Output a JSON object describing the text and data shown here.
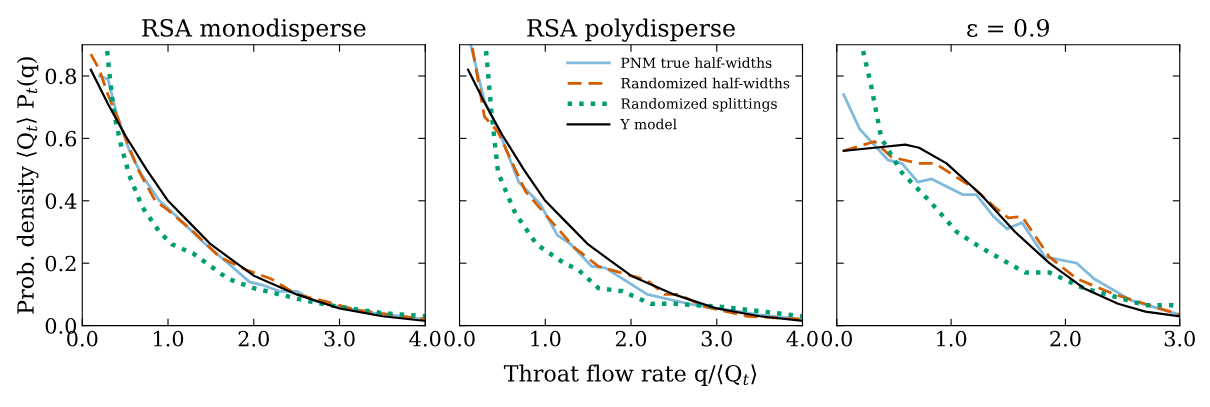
{
  "chart_data": [
    {
      "type": "line",
      "title": "RSA monodisperse",
      "ylabel": "Prob. density ⟨Q$_{t}$⟩ P$_{t}$(q)",
      "xlim": [
        0,
        4
      ],
      "ylim": [
        0,
        0.9
      ],
      "xticks": [
        {
          "value": 0,
          "label": "0.0"
        },
        {
          "value": 1,
          "label": "1.0"
        },
        {
          "value": 2,
          "label": "2.0"
        },
        {
          "value": 3,
          "label": "3.0"
        },
        {
          "value": 4,
          "label": "4.0"
        }
      ],
      "yticks": [
        {
          "value": 0,
          "label": "0.0"
        },
        {
          "value": 0.2,
          "label": "0.2"
        },
        {
          "value": 0.4,
          "label": "0.4"
        },
        {
          "value": 0.6,
          "label": "0.6"
        },
        {
          "value": 0.8,
          "label": "0.8"
        }
      ],
      "series": [
        {
          "color": "#7fb9dc",
          "line_style": "solid",
          "x": [
            0.2,
            0.3,
            0.4,
            0.55,
            0.7,
            0.9,
            1.1,
            1.4,
            1.7,
            1.95,
            2.1,
            2.3,
            2.5,
            2.7,
            3.0,
            3.4,
            4.0
          ],
          "values": [
            0.8,
            0.79,
            0.68,
            0.56,
            0.48,
            0.4,
            0.35,
            0.27,
            0.2,
            0.14,
            0.13,
            0.11,
            0.11,
            0.08,
            0.06,
            0.04,
            0.02
          ]
        },
        {
          "color": "#d55e00",
          "line_style": "dashed",
          "x": [
            0.1,
            0.2,
            0.3,
            0.45,
            0.65,
            0.85,
            1.0,
            1.3,
            1.6,
            1.9,
            2.2,
            2.5,
            2.8,
            3.2,
            3.6,
            4.0
          ],
          "values": [
            0.87,
            0.82,
            0.74,
            0.64,
            0.5,
            0.4,
            0.37,
            0.3,
            0.22,
            0.18,
            0.15,
            0.1,
            0.08,
            0.05,
            0.035,
            0.02
          ]
        },
        {
          "color": "#009e73",
          "line_style": "dotted",
          "x": [
            0.29,
            0.32,
            0.37,
            0.45,
            0.55,
            0.7,
            0.9,
            1.05,
            1.3,
            1.5,
            1.7,
            2.0,
            2.3,
            2.6,
            3.0,
            3.5,
            4.0
          ],
          "values": [
            0.88,
            0.8,
            0.68,
            0.58,
            0.48,
            0.38,
            0.3,
            0.26,
            0.23,
            0.19,
            0.15,
            0.12,
            0.1,
            0.08,
            0.06,
            0.04,
            0.03
          ]
        },
        {
          "color": "#000000",
          "line_style": "solid",
          "x": [
            0.1,
            0.3,
            0.5,
            0.75,
            1.0,
            1.25,
            1.5,
            1.75,
            2.0,
            2.5,
            3.0,
            3.5,
            4.0
          ],
          "values": [
            0.82,
            0.71,
            0.61,
            0.5,
            0.4,
            0.33,
            0.26,
            0.21,
            0.16,
            0.1,
            0.055,
            0.03,
            0.015
          ]
        }
      ],
      "tick_labels": true
    },
    {
      "type": "line",
      "title": "RSA polydisperse",
      "xlabel": "Throat flow rate q/⟨Q$_{t}$⟩",
      "xlim": [
        0,
        4
      ],
      "ylim": [
        0,
        0.9
      ],
      "xticks": [
        {
          "value": 0,
          "label": "0.0"
        },
        {
          "value": 1,
          "label": "1.0"
        },
        {
          "value": 2,
          "label": "2.0"
        },
        {
          "value": 3,
          "label": "3.0"
        },
        {
          "value": 4,
          "label": "4.0"
        }
      ],
      "yticks": [
        {
          "value": 0,
          "label": null
        },
        {
          "value": 0.2,
          "label": null
        },
        {
          "value": 0.4,
          "label": null
        },
        {
          "value": 0.6,
          "label": null
        },
        {
          "value": 0.8,
          "label": null
        }
      ],
      "legend": "top right",
      "tick_labels": "x",
      "series": [
        {
          "name": "PNM true half-widths",
          "color": "#7fb9dc",
          "line_style": "solid",
          "x": [
            0.13,
            0.29,
            0.45,
            0.69,
            0.94,
            1.14,
            1.3,
            1.54,
            1.7,
            2.19,
            2.67,
            3.48,
            4.0
          ],
          "values": [
            0.9,
            0.72,
            0.63,
            0.46,
            0.39,
            0.29,
            0.26,
            0.19,
            0.185,
            0.1,
            0.07,
            0.035,
            0.02
          ]
        },
        {
          "name": "Randomized half-widths",
          "color": "#d55e00",
          "line_style": "dashed",
          "x": [
            0.15,
            0.29,
            0.45,
            0.77,
            1.02,
            1.34,
            1.62,
            2.19,
            2.39,
            2.55,
            2.87,
            3.35,
            4.0
          ],
          "values": [
            0.89,
            0.67,
            0.62,
            0.43,
            0.35,
            0.25,
            0.19,
            0.145,
            0.1,
            0.1,
            0.06,
            0.03,
            0.02
          ]
        },
        {
          "name": "Randomized splittings",
          "color": "#009e73",
          "line_style": "dotted",
          "x": [
            0.31,
            0.37,
            0.45,
            0.65,
            0.9,
            1.22,
            1.38,
            1.62,
            1.9,
            2.23,
            2.51,
            3.07,
            4.0
          ],
          "values": [
            0.88,
            0.69,
            0.49,
            0.36,
            0.26,
            0.2,
            0.18,
            0.12,
            0.11,
            0.07,
            0.07,
            0.06,
            0.03
          ]
        },
        {
          "name": "Y model",
          "color": "#000000",
          "line_style": "solid",
          "x": [
            0.1,
            0.3,
            0.5,
            0.75,
            1.0,
            1.25,
            1.5,
            1.75,
            2.0,
            2.5,
            3.0,
            3.5,
            4.0
          ],
          "values": [
            0.82,
            0.71,
            0.61,
            0.5,
            0.4,
            0.33,
            0.26,
            0.21,
            0.16,
            0.1,
            0.055,
            0.03,
            0.015
          ]
        }
      ]
    },
    {
      "type": "line",
      "title": "ε = 0.9",
      "xlim": [
        0,
        3
      ],
      "ylim": [
        0,
        0.9
      ],
      "xticks": [
        {
          "value": 0,
          "label": "0.0"
        },
        {
          "value": 1,
          "label": "1.0"
        },
        {
          "value": 2,
          "label": "2.0"
        },
        {
          "value": 3,
          "label": "3.0"
        }
      ],
      "yticks": [
        {
          "value": 0,
          "label": null
        },
        {
          "value": 0.2,
          "label": null
        },
        {
          "value": 0.4,
          "label": null
        },
        {
          "value": 0.6,
          "label": null
        },
        {
          "value": 0.8,
          "label": null
        }
      ],
      "tick_labels": "x",
      "series": [
        {
          "color": "#7fb9dc",
          "line_style": "solid",
          "x": [
            0.06,
            0.2,
            0.45,
            0.57,
            0.71,
            0.83,
            1.1,
            1.22,
            1.37,
            1.49,
            1.62,
            1.82,
            2.1,
            2.25,
            2.58,
            3.0
          ],
          "values": [
            0.74,
            0.63,
            0.53,
            0.52,
            0.46,
            0.47,
            0.42,
            0.42,
            0.35,
            0.31,
            0.33,
            0.22,
            0.2,
            0.15,
            0.08,
            0.035
          ]
        },
        {
          "color": "#d55e00",
          "line_style": "dashed",
          "x": [
            0.06,
            0.33,
            0.48,
            0.71,
            0.86,
            1.2,
            1.38,
            1.5,
            1.62,
            1.86,
            2.1,
            2.43,
            3.0
          ],
          "values": [
            0.56,
            0.59,
            0.54,
            0.52,
            0.52,
            0.44,
            0.38,
            0.345,
            0.35,
            0.22,
            0.15,
            0.1,
            0.035
          ]
        },
        {
          "color": "#009e73",
          "line_style": "dotted",
          "x": [
            0.23,
            0.3,
            0.39,
            0.57,
            0.81,
            1.05,
            1.26,
            1.5,
            1.65,
            1.86,
            2.16,
            2.46,
            2.7,
            3.0
          ],
          "values": [
            0.88,
            0.77,
            0.6,
            0.49,
            0.4,
            0.3,
            0.25,
            0.2,
            0.17,
            0.17,
            0.12,
            0.09,
            0.065,
            0.065
          ]
        },
        {
          "color": "#000000",
          "line_style": "solid",
          "x": [
            0.06,
            0.33,
            0.6,
            0.72,
            0.96,
            1.26,
            1.56,
            1.86,
            2.16,
            2.46,
            2.7,
            3.0
          ],
          "values": [
            0.56,
            0.57,
            0.58,
            0.57,
            0.52,
            0.42,
            0.3,
            0.2,
            0.12,
            0.07,
            0.045,
            0.03
          ]
        }
      ]
    }
  ]
}
